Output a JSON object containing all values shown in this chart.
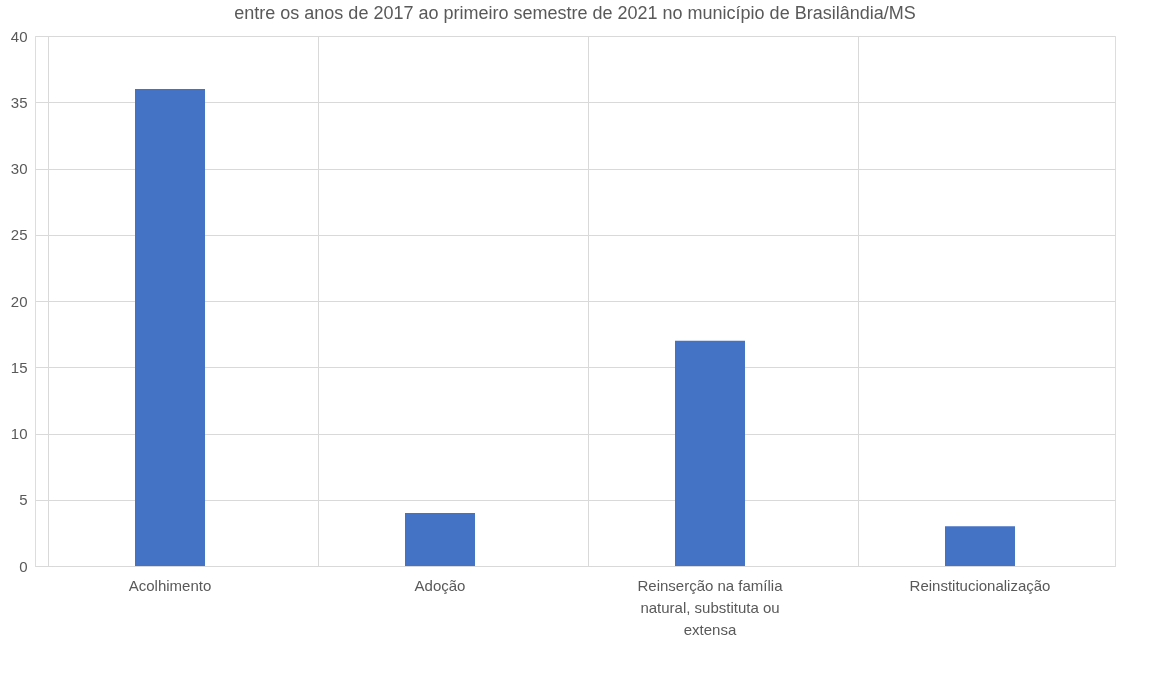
{
  "chart_data": {
    "type": "bar",
    "title": "entre os anos de 2017 ao primeiro semestre de 2021 no município de Brasilândia/MS",
    "categories": [
      "Acolhimento",
      "Adoção",
      "Reinserção na família natural, substituta ou extensa",
      "Reinstitucionalização"
    ],
    "values": [
      36,
      4,
      17,
      3
    ],
    "color": "#4472c4",
    "ylim": [
      0,
      40
    ],
    "yticks": [
      0,
      5,
      10,
      15,
      20,
      25,
      30,
      35,
      40
    ],
    "grid": true
  }
}
